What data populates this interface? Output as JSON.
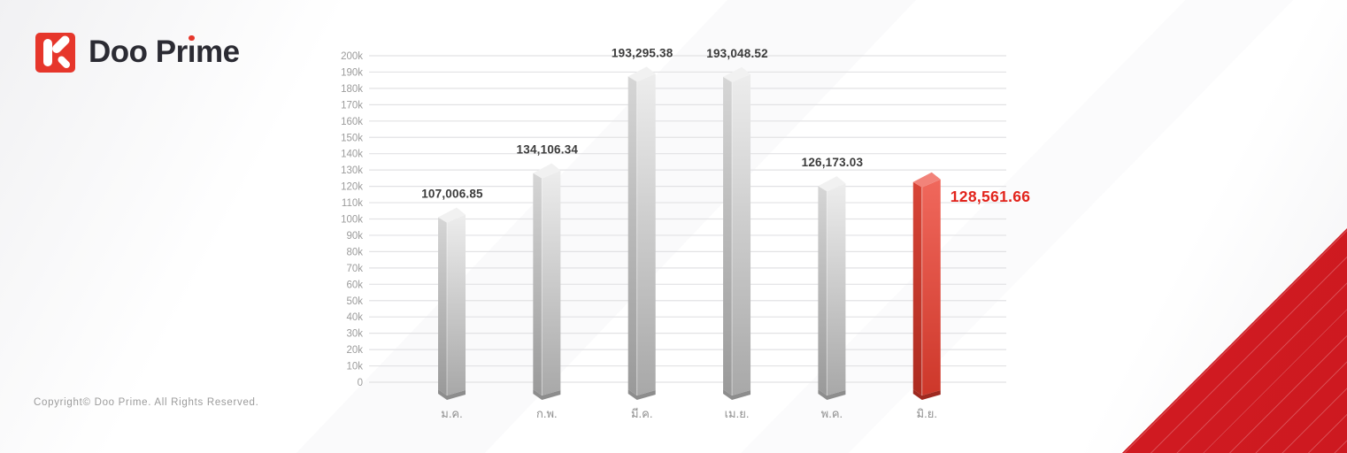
{
  "logo": {
    "label": "Doo Prime",
    "text_before_i": "Doo Pr",
    "i_char": "ı",
    "text_after_i": "me",
    "brand_red": "#e6362b",
    "text_color": "#2b2b33"
  },
  "footer": {
    "copyright": "Copyright© Doo Prime. All Rights Reserved."
  },
  "chart_data": {
    "type": "bar",
    "title": "",
    "xlabel": "",
    "ylabel": "",
    "categories": [
      "ม.ค.",
      "ก.พ.",
      "มี.ค.",
      "เม.ย.",
      "พ.ค.",
      "มิ.ย."
    ],
    "values": [
      107006.85,
      134106.34,
      193295.38,
      193048.52,
      126173.03,
      128561.66
    ],
    "value_labels": [
      "107,006.85",
      "134,106.34",
      "193,295.38",
      "193,048.52",
      "126,173.03",
      "128,561.66"
    ],
    "highlight_index": 5,
    "ylim": [
      0,
      200000
    ],
    "ytick_step": 10000,
    "ytick_labels": [
      "0",
      "10k",
      "20k",
      "30k",
      "40k",
      "50k",
      "60k",
      "70k",
      "80k",
      "90k",
      "100k",
      "110k",
      "120k",
      "130k",
      "140k",
      "150k",
      "160k",
      "170k",
      "180k",
      "190k",
      "200k"
    ],
    "grid": true,
    "legend": false,
    "bar_style": "3d-prism"
  },
  "colors": {
    "grid": "#e2e2e4",
    "tick_label": "#9c9c9c",
    "month_label": "#8f8f8f",
    "value_label": "#3b3b3b",
    "highlight_label": "#e2241c",
    "bar_gray": {
      "left_top": "#d6d6d6",
      "left_bottom": "#999999",
      "right_top": "#ededed",
      "right_bottom": "#a8a8a8",
      "top": "#f1f1f1",
      "foot": "#8d8d8d"
    },
    "bar_red": {
      "left_top": "#d84537",
      "left_bottom": "#ad2b20",
      "right_top": "#f0685c",
      "right_bottom": "#cd372a",
      "top": "#f2837a",
      "foot": "#9e2920"
    },
    "triangle": "#e01f24"
  }
}
